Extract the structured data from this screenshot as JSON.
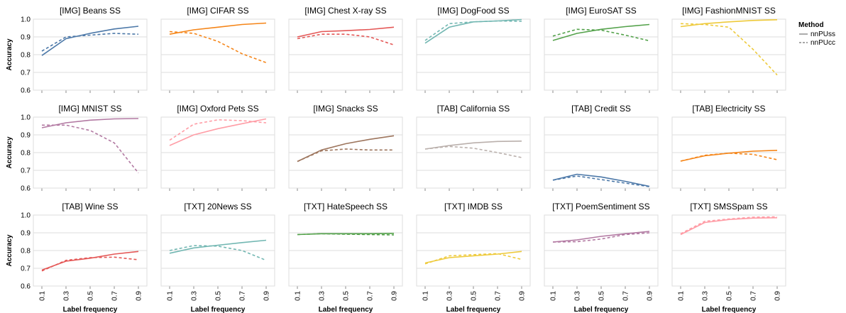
{
  "chart_data": {
    "type": "line",
    "x": [
      0.1,
      0.3,
      0.5,
      0.7,
      0.9
    ],
    "x_tick_labels": [
      "0.1",
      "0.3",
      "0.5",
      "0.7",
      "0.9"
    ],
    "xlabel": "Label frequency",
    "ylabel": "Accuracy",
    "ylim": [
      0.6,
      1.0
    ],
    "y_ticks": [
      "0.6",
      "0.7",
      "0.8",
      "0.9",
      "1.0"
    ],
    "grid": true,
    "legend": {
      "title": "Method",
      "placement": "right",
      "entries": [
        {
          "name": "nnPUss",
          "style": "solid"
        },
        {
          "name": "nnPUcc",
          "style": "dashed"
        }
      ]
    },
    "panels": [
      {
        "title": "[IMG] Beans SS",
        "color": "#4c78a8",
        "nnPUss": [
          0.795,
          0.89,
          0.92,
          0.945,
          0.96
        ],
        "nnPUcc": [
          0.82,
          0.9,
          0.91,
          0.92,
          0.915
        ]
      },
      {
        "title": "[IMG] CIFAR SS",
        "color": "#f58518",
        "nnPUss": [
          0.915,
          0.94,
          0.955,
          0.97,
          0.978
        ],
        "nnPUcc": [
          0.93,
          0.92,
          0.875,
          0.805,
          0.755
        ]
      },
      {
        "title": "[IMG] Chest X-ray SS",
        "color": "#e45756",
        "nnPUss": [
          0.9,
          0.93,
          0.935,
          0.942,
          0.955
        ],
        "nnPUcc": [
          0.89,
          0.915,
          0.915,
          0.9,
          0.855
        ]
      },
      {
        "title": "[IMG] DogFood SS",
        "color": "#72b7b2",
        "nnPUss": [
          0.865,
          0.955,
          0.985,
          0.99,
          0.998
        ],
        "nnPUcc": [
          0.88,
          0.975,
          0.985,
          0.99,
          0.988
        ]
      },
      {
        "title": "[IMG] EuroSAT SS",
        "color": "#54a24b",
        "nnPUss": [
          0.88,
          0.92,
          0.943,
          0.958,
          0.97
        ],
        "nnPUcc": [
          0.905,
          0.943,
          0.938,
          0.91,
          0.878
        ]
      },
      {
        "title": "[IMG] FashionMNIST SS",
        "color": "#eeca3b",
        "nnPUss": [
          0.958,
          0.975,
          0.985,
          0.993,
          0.997
        ],
        "nnPUcc": [
          0.975,
          0.97,
          0.955,
          0.83,
          0.685
        ]
      },
      {
        "title": "[IMG] MNIST SS",
        "color": "#b279a2",
        "nnPUss": [
          0.94,
          0.968,
          0.983,
          0.99,
          0.992
        ],
        "nnPUcc": [
          0.955,
          0.955,
          0.925,
          0.855,
          0.685
        ]
      },
      {
        "title": "[IMG] Oxford Pets SS",
        "color": "#ff9da6",
        "nnPUss": [
          0.84,
          0.9,
          0.935,
          0.963,
          0.99
        ],
        "nnPUcc": [
          0.87,
          0.96,
          0.985,
          0.98,
          0.968
        ]
      },
      {
        "title": "[IMG] Snacks SS",
        "color": "#9d755d",
        "nnPUss": [
          0.75,
          0.815,
          0.85,
          0.875,
          0.895
        ],
        "nnPUcc": [
          0.75,
          0.81,
          0.82,
          0.815,
          0.815
        ]
      },
      {
        "title": "[TAB] California SS",
        "color": "#bab0ac",
        "nnPUss": [
          0.82,
          0.84,
          0.855,
          0.863,
          0.865
        ],
        "nnPUcc": [
          0.82,
          0.835,
          0.825,
          0.8,
          0.772
        ]
      },
      {
        "title": "[TAB] Credit SS",
        "color": "#4c78a8",
        "nnPUss": [
          0.645,
          0.678,
          0.663,
          0.638,
          0.61
        ],
        "nnPUcc": [
          0.645,
          0.668,
          0.648,
          0.628,
          0.608
        ]
      },
      {
        "title": "[TAB] Electricity SS",
        "color": "#f58518",
        "nnPUss": [
          0.752,
          0.782,
          0.797,
          0.808,
          0.813
        ],
        "nnPUcc": [
          0.752,
          0.785,
          0.797,
          0.79,
          0.76
        ]
      },
      {
        "title": "[TAB] Wine SS",
        "color": "#e45756",
        "nnPUss": [
          0.69,
          0.74,
          0.757,
          0.78,
          0.795
        ],
        "nnPUcc": [
          0.685,
          0.745,
          0.76,
          0.763,
          0.748
        ]
      },
      {
        "title": "[TXT] 20News SS",
        "color": "#72b7b2",
        "nnPUss": [
          0.785,
          0.815,
          0.83,
          0.845,
          0.858
        ],
        "nnPUcc": [
          0.8,
          0.828,
          0.825,
          0.8,
          0.745
        ]
      },
      {
        "title": "[TXT] HateSpeech SS",
        "color": "#54a24b",
        "nnPUss": [
          0.89,
          0.895,
          0.895,
          0.895,
          0.897
        ],
        "nnPUcc": [
          0.89,
          0.895,
          0.892,
          0.89,
          0.888
        ]
      },
      {
        "title": "[TXT] IMDB SS",
        "color": "#eeca3b",
        "nnPUss": [
          0.73,
          0.76,
          0.77,
          0.78,
          0.795
        ],
        "nnPUcc": [
          0.725,
          0.77,
          0.777,
          0.783,
          0.75
        ]
      },
      {
        "title": "[TXT] PoemSentiment SS",
        "color": "#b279a2",
        "nnPUss": [
          0.848,
          0.86,
          0.88,
          0.895,
          0.908
        ],
        "nnPUcc": [
          0.848,
          0.85,
          0.865,
          0.89,
          0.9
        ]
      },
      {
        "title": "[TXT] SMSSpam SS",
        "color": "#ff9da6",
        "nnPUss": [
          0.89,
          0.958,
          0.975,
          0.983,
          0.985
        ],
        "nnPUcc": [
          0.895,
          0.965,
          0.978,
          0.988,
          0.99
        ]
      }
    ]
  }
}
